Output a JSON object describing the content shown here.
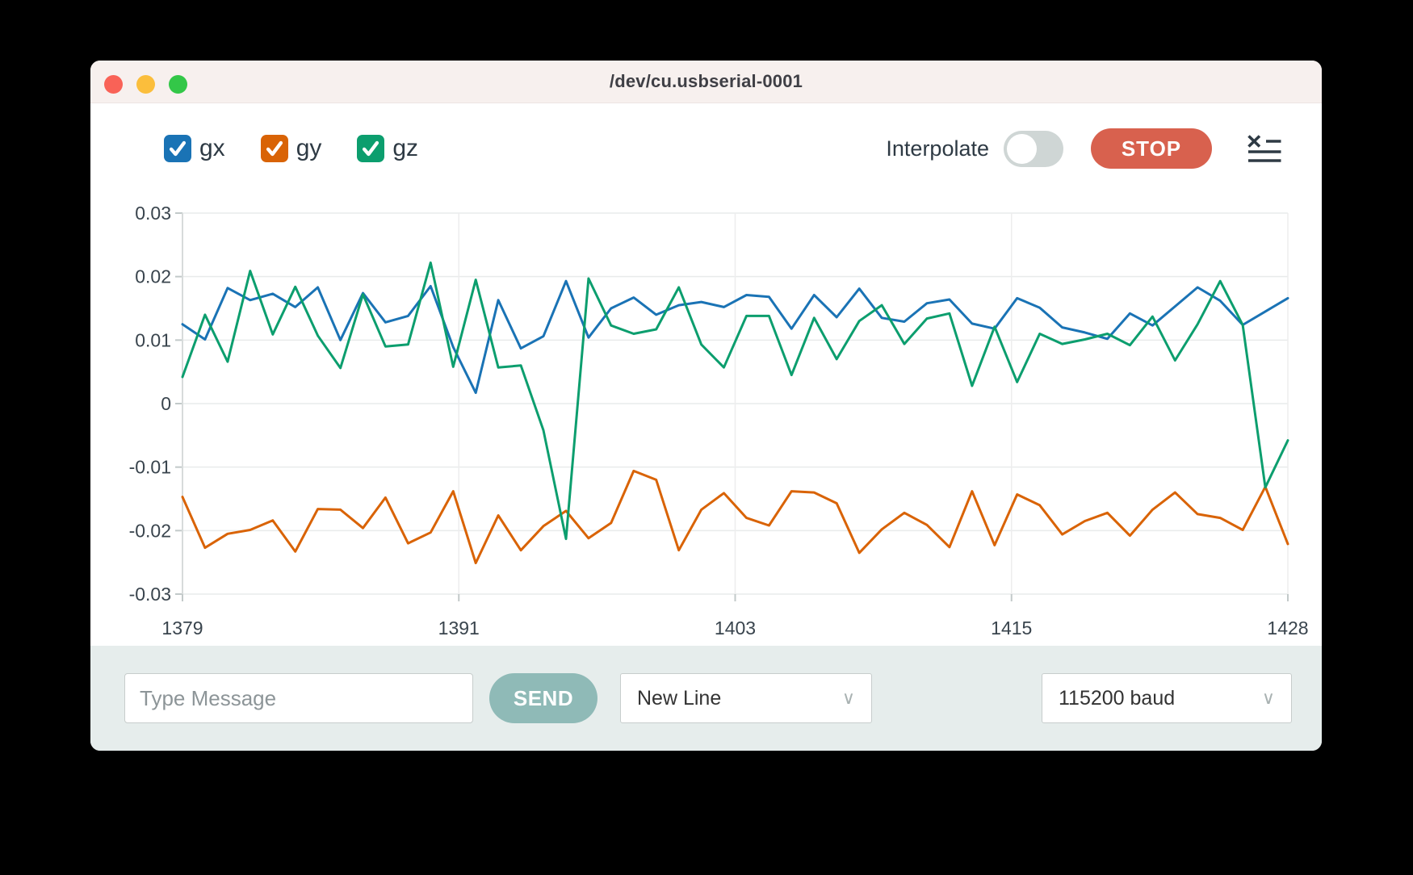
{
  "window": {
    "title": "/dev/cu.usbserial-0001"
  },
  "toolbar": {
    "interpolate_label": "Interpolate",
    "interpolate_on": false,
    "stop_label": "STOP",
    "list_icon": "clear-list-icon"
  },
  "chart_data": {
    "type": "line",
    "title": "",
    "xlabel": "",
    "ylabel": "",
    "grid": true,
    "legend_position": "top-left-checkboxes",
    "ylim": [
      -0.03,
      0.03
    ],
    "yticks": [
      0.03,
      0.02,
      0.01,
      0,
      -0.01,
      -0.02,
      -0.03
    ],
    "xticks": {
      "labels": [
        "1379",
        "1391",
        "1403",
        "1415",
        "1428"
      ],
      "fractions": [
        0,
        0.25,
        0.5,
        0.75,
        1
      ]
    },
    "x": [
      1379,
      1380,
      1381,
      1382,
      1383,
      1384,
      1385,
      1386,
      1387,
      1388,
      1389,
      1390,
      1391,
      1392,
      1393,
      1394,
      1395,
      1396,
      1397,
      1398,
      1399,
      1400,
      1401,
      1402,
      1403,
      1404,
      1405,
      1406,
      1407,
      1408,
      1409,
      1410,
      1411,
      1412,
      1413,
      1414,
      1415,
      1416,
      1417,
      1418,
      1419,
      1420,
      1421,
      1422,
      1423,
      1424,
      1425,
      1426,
      1427,
      1428
    ],
    "series": [
      {
        "name": "gx",
        "color": "#1a73b5",
        "checked": true,
        "values": [
          0.0125,
          0.0101,
          0.0182,
          0.0163,
          0.0173,
          0.0152,
          0.0183,
          0.01,
          0.0174,
          0.0128,
          0.0138,
          0.0185,
          0.0089,
          0.0017,
          0.0163,
          0.0087,
          0.0106,
          0.0193,
          0.0104,
          0.015,
          0.0167,
          0.014,
          0.0155,
          0.016,
          0.0152,
          0.0171,
          0.0168,
          0.0118,
          0.0171,
          0.0136,
          0.0181,
          0.0135,
          0.0129,
          0.0158,
          0.0164,
          0.0126,
          0.0118,
          0.0166,
          0.0151,
          0.012,
          0.0112,
          0.0102,
          0.0142,
          0.0123,
          0.0153,
          0.0183,
          0.0162,
          0.0124,
          0.0145,
          0.0166
        ]
      },
      {
        "name": "gy",
        "color": "#d96305",
        "checked": true,
        "values": [
          -0.0147,
          -0.0227,
          -0.0205,
          -0.0199,
          -0.0184,
          -0.0233,
          -0.0166,
          -0.0167,
          -0.0196,
          -0.0148,
          -0.022,
          -0.0203,
          -0.0138,
          -0.0251,
          -0.0176,
          -0.0231,
          -0.0193,
          -0.0169,
          -0.0212,
          -0.0188,
          -0.0106,
          -0.012,
          -0.0231,
          -0.0167,
          -0.0141,
          -0.018,
          -0.0192,
          -0.0138,
          -0.014,
          -0.0157,
          -0.0235,
          -0.0198,
          -0.0172,
          -0.0191,
          -0.0226,
          -0.0138,
          -0.0223,
          -0.0143,
          -0.016,
          -0.0206,
          -0.0185,
          -0.0172,
          -0.0208,
          -0.0167,
          -0.014,
          -0.0174,
          -0.018,
          -0.0199,
          -0.0131,
          -0.0221
        ]
      },
      {
        "name": "gz",
        "color": "#0c9e6e",
        "checked": true,
        "values": [
          0.0042,
          0.014,
          0.0066,
          0.0209,
          0.0109,
          0.0184,
          0.0107,
          0.0056,
          0.0172,
          0.009,
          0.0093,
          0.0222,
          0.0058,
          0.0195,
          0.0057,
          0.006,
          -0.0042,
          -0.0213,
          0.0197,
          0.0123,
          0.011,
          0.0117,
          0.0183,
          0.0093,
          0.0057,
          0.0138,
          0.0138,
          0.0045,
          0.0135,
          0.007,
          0.013,
          0.0155,
          0.0094,
          0.0134,
          0.0142,
          0.0028,
          0.0121,
          0.0034,
          0.011,
          0.0094,
          0.0101,
          0.011,
          0.0092,
          0.0137,
          0.0068,
          0.0125,
          0.0193,
          0.0124,
          -0.0132,
          -0.0058
        ]
      }
    ]
  },
  "message_bar": {
    "input_placeholder": "Type Message",
    "send_label": "SEND",
    "line_ending_selected": "New Line",
    "baud_rate_selected": "115200 baud"
  }
}
